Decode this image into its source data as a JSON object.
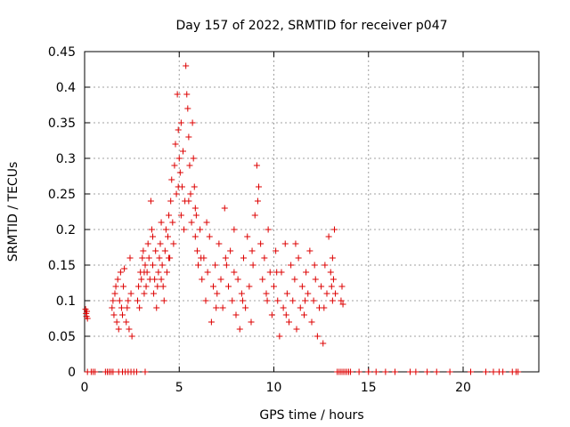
{
  "chart_data": {
    "type": "scatter",
    "title": "Day 157 of 2022, SRMTID for receiver p047",
    "xlabel": "GPS time / hours",
    "ylabel": "SRMTID / TECUs",
    "xlim": [
      0,
      24
    ],
    "ylim": [
      0,
      0.45
    ],
    "xticks": [
      0,
      5,
      10,
      15,
      20
    ],
    "xtick_labels": [
      "0",
      "5",
      "10",
      "15",
      "20"
    ],
    "yticks": [
      0,
      0.05,
      0.1,
      0.15,
      0.2,
      0.25,
      0.3,
      0.35,
      0.4,
      0.45
    ],
    "ytick_labels": [
      "0",
      "0.05",
      "0.1",
      "0.15",
      "0.2",
      "0.25",
      "0.3",
      "0.35",
      "0.4",
      "0.45"
    ],
    "grid": true,
    "marker": "+",
    "color": "#dd0000",
    "series": [
      {
        "name": "SRMTID",
        "points": [
          [
            0.05,
            0.088
          ],
          [
            0.08,
            0.082
          ],
          [
            0.1,
            0.078
          ],
          [
            0.12,
            0.085
          ],
          [
            0.15,
            0.075
          ],
          [
            1.45,
            0.09
          ],
          [
            1.5,
            0.1
          ],
          [
            1.55,
            0.08
          ],
          [
            1.6,
            0.11
          ],
          [
            1.65,
            0.12
          ],
          [
            1.7,
            0.07
          ],
          [
            1.75,
            0.13
          ],
          [
            1.8,
            0.06
          ],
          [
            1.85,
            0.1
          ],
          [
            1.9,
            0.14
          ],
          [
            1.95,
            0.09
          ],
          [
            2.0,
            0.08
          ],
          [
            2.05,
            0.12
          ],
          [
            2.1,
            0.145
          ],
          [
            2.2,
            0.07
          ],
          [
            2.25,
            0.09
          ],
          [
            2.3,
            0.1
          ],
          [
            2.35,
            0.06
          ],
          [
            2.4,
            0.16
          ],
          [
            2.45,
            0.11
          ],
          [
            2.5,
            0.05
          ],
          [
            2.8,
            0.1
          ],
          [
            2.85,
            0.12
          ],
          [
            2.9,
            0.09
          ],
          [
            2.95,
            0.14
          ],
          [
            3.0,
            0.13
          ],
          [
            3.05,
            0.16
          ],
          [
            3.1,
            0.17
          ],
          [
            3.15,
            0.11
          ],
          [
            3.2,
            0.15
          ],
          [
            3.25,
            0.12
          ],
          [
            3.3,
            0.14
          ],
          [
            3.35,
            0.18
          ],
          [
            3.4,
            0.16
          ],
          [
            3.45,
            0.13
          ],
          [
            3.5,
            0.24
          ],
          [
            3.55,
            0.2
          ],
          [
            3.6,
            0.15
          ],
          [
            3.65,
            0.11
          ],
          [
            3.7,
            0.13
          ],
          [
            3.75,
            0.17
          ],
          [
            3.8,
            0.09
          ],
          [
            3.85,
            0.12
          ],
          [
            3.9,
            0.14
          ],
          [
            3.95,
            0.16
          ],
          [
            4.0,
            0.18
          ],
          [
            4.05,
            0.13
          ],
          [
            4.1,
            0.15
          ],
          [
            4.15,
            0.12
          ],
          [
            4.2,
            0.1
          ],
          [
            4.25,
            0.17
          ],
          [
            4.3,
            0.2
          ],
          [
            4.35,
            0.14
          ],
          [
            4.4,
            0.19
          ],
          [
            4.45,
            0.22
          ],
          [
            4.5,
            0.16
          ],
          [
            4.55,
            0.24
          ],
          [
            4.6,
            0.27
          ],
          [
            4.65,
            0.21
          ],
          [
            4.7,
            0.18
          ],
          [
            4.75,
            0.29
          ],
          [
            4.8,
            0.32
          ],
          [
            4.85,
            0.25
          ],
          [
            4.9,
            0.39
          ],
          [
            4.95,
            0.34
          ],
          [
            5.0,
            0.3
          ],
          [
            5.05,
            0.28
          ],
          [
            5.1,
            0.22
          ],
          [
            5.15,
            0.26
          ],
          [
            5.2,
            0.31
          ],
          [
            5.25,
            0.2
          ],
          [
            5.3,
            0.24
          ],
          [
            5.35,
            0.43
          ],
          [
            5.4,
            0.39
          ],
          [
            5.45,
            0.37
          ],
          [
            5.5,
            0.33
          ],
          [
            5.55,
            0.29
          ],
          [
            5.6,
            0.25
          ],
          [
            5.65,
            0.21
          ],
          [
            5.7,
            0.35
          ],
          [
            5.75,
            0.3
          ],
          [
            5.8,
            0.26
          ],
          [
            5.85,
            0.19
          ],
          [
            5.9,
            0.22
          ],
          [
            5.95,
            0.17
          ],
          [
            6.0,
            0.15
          ],
          [
            6.1,
            0.2
          ],
          [
            6.2,
            0.13
          ],
          [
            6.3,
            0.16
          ],
          [
            6.4,
            0.1
          ],
          [
            6.5,
            0.14
          ],
          [
            6.6,
            0.19
          ],
          [
            6.7,
            0.07
          ],
          [
            6.8,
            0.12
          ],
          [
            6.9,
            0.15
          ],
          [
            7.0,
            0.11
          ],
          [
            7.1,
            0.18
          ],
          [
            7.2,
            0.13
          ],
          [
            7.3,
            0.09
          ],
          [
            7.4,
            0.23
          ],
          [
            7.5,
            0.15
          ],
          [
            7.6,
            0.12
          ],
          [
            7.7,
            0.17
          ],
          [
            7.8,
            0.1
          ],
          [
            7.9,
            0.14
          ],
          [
            8.0,
            0.08
          ],
          [
            8.1,
            0.13
          ],
          [
            8.2,
            0.06
          ],
          [
            8.3,
            0.11
          ],
          [
            8.4,
            0.16
          ],
          [
            8.5,
            0.09
          ],
          [
            8.6,
            0.19
          ],
          [
            8.7,
            0.12
          ],
          [
            8.8,
            0.07
          ],
          [
            8.9,
            0.15
          ],
          [
            9.0,
            0.22
          ],
          [
            9.1,
            0.29
          ],
          [
            9.2,
            0.26
          ],
          [
            9.3,
            0.18
          ],
          [
            9.4,
            0.13
          ],
          [
            9.5,
            0.16
          ],
          [
            9.6,
            0.11
          ],
          [
            9.7,
            0.2
          ],
          [
            9.8,
            0.14
          ],
          [
            9.9,
            0.08
          ],
          [
            10.0,
            0.12
          ],
          [
            10.1,
            0.17
          ],
          [
            10.2,
            0.1
          ],
          [
            10.3,
            0.05
          ],
          [
            10.4,
            0.14
          ],
          [
            10.5,
            0.09
          ],
          [
            10.6,
            0.18
          ],
          [
            10.7,
            0.11
          ],
          [
            10.8,
            0.07
          ],
          [
            10.9,
            0.15
          ],
          [
            11.0,
            0.1
          ],
          [
            11.1,
            0.13
          ],
          [
            11.2,
            0.06
          ],
          [
            11.3,
            0.16
          ],
          [
            11.4,
            0.09
          ],
          [
            11.5,
            0.12
          ],
          [
            11.6,
            0.08
          ],
          [
            11.7,
            0.14
          ],
          [
            11.8,
            0.11
          ],
          [
            11.9,
            0.17
          ],
          [
            12.0,
            0.07
          ],
          [
            12.1,
            0.1
          ],
          [
            12.2,
            0.13
          ],
          [
            12.3,
            0.05
          ],
          [
            12.4,
            0.09
          ],
          [
            12.5,
            0.12
          ],
          [
            12.6,
            0.04
          ],
          [
            12.7,
            0.15
          ],
          [
            12.8,
            0.11
          ],
          [
            12.9,
            0.19
          ],
          [
            13.0,
            0.14
          ],
          [
            13.05,
            0.12
          ],
          [
            13.1,
            0.16
          ],
          [
            13.15,
            0.13
          ],
          [
            13.2,
            0.2
          ],
          [
            13.25,
            0.11
          ],
          [
            13.55,
            0.1
          ],
          [
            13.6,
            0.12
          ],
          [
            13.65,
            0.095
          ],
          [
            3.15,
            0.14
          ],
          [
            3.6,
            0.19
          ],
          [
            4.05,
            0.21
          ],
          [
            4.45,
            0.16
          ],
          [
            4.95,
            0.26
          ],
          [
            5.1,
            0.35
          ],
          [
            5.5,
            0.24
          ],
          [
            5.85,
            0.23
          ],
          [
            6.15,
            0.16
          ],
          [
            6.45,
            0.21
          ],
          [
            6.95,
            0.09
          ],
          [
            7.45,
            0.16
          ],
          [
            7.9,
            0.2
          ],
          [
            8.35,
            0.1
          ],
          [
            8.85,
            0.17
          ],
          [
            9.15,
            0.24
          ],
          [
            9.65,
            0.1
          ],
          [
            10.15,
            0.14
          ],
          [
            10.65,
            0.08
          ],
          [
            11.15,
            0.18
          ],
          [
            11.65,
            0.1
          ],
          [
            12.15,
            0.15
          ],
          [
            12.65,
            0.09
          ],
          [
            13.1,
            0.1
          ],
          [
            0.15,
            0
          ],
          [
            0.35,
            0
          ],
          [
            0.45,
            0
          ],
          [
            0.55,
            0
          ],
          [
            1.1,
            0
          ],
          [
            1.2,
            0
          ],
          [
            1.3,
            0
          ],
          [
            1.4,
            0
          ],
          [
            1.5,
            0
          ],
          [
            1.8,
            0
          ],
          [
            2.0,
            0
          ],
          [
            2.15,
            0
          ],
          [
            2.3,
            0
          ],
          [
            2.45,
            0
          ],
          [
            2.6,
            0
          ],
          [
            2.75,
            0
          ],
          [
            3.2,
            0
          ],
          [
            13.35,
            0
          ],
          [
            13.45,
            0
          ],
          [
            13.55,
            0
          ],
          [
            13.65,
            0
          ],
          [
            13.75,
            0
          ],
          [
            13.85,
            0
          ],
          [
            13.95,
            0
          ],
          [
            14.05,
            0
          ],
          [
            14.5,
            0
          ],
          [
            15.0,
            0
          ],
          [
            15.4,
            0
          ],
          [
            15.9,
            0
          ],
          [
            16.4,
            0
          ],
          [
            17.2,
            0
          ],
          [
            17.5,
            0
          ],
          [
            18.1,
            0
          ],
          [
            18.6,
            0
          ],
          [
            19.3,
            0
          ],
          [
            20.4,
            0
          ],
          [
            21.2,
            0
          ],
          [
            21.6,
            0
          ],
          [
            21.9,
            0
          ],
          [
            22.1,
            0
          ],
          [
            22.6,
            0
          ],
          [
            22.8,
            0
          ],
          [
            22.9,
            0
          ]
        ]
      }
    ]
  }
}
